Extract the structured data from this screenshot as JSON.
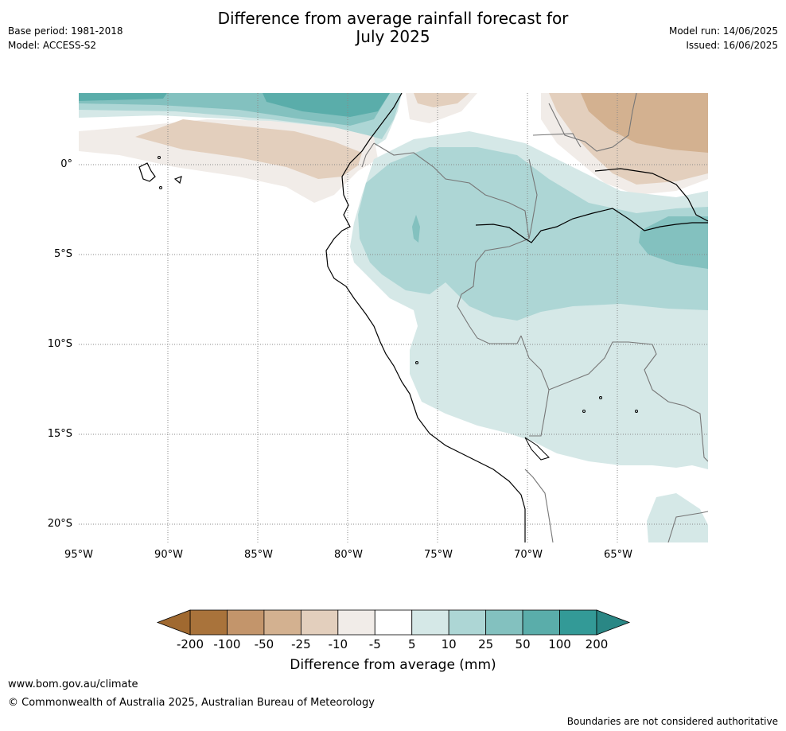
{
  "title_line1": "Difference from average rainfall forecast for",
  "title_line2": "July 2025",
  "meta_left": {
    "base_period": "Base period: 1981-2018",
    "model": "Model: ACCESS-S2"
  },
  "meta_right": {
    "model_run": "Model run: 14/06/2025",
    "issued": "Issued: 16/06/2025"
  },
  "map": {
    "lon_range": [
      -95,
      -60
    ],
    "lat_range": [
      -21,
      4
    ],
    "lat_ticks": [
      {
        "value": 0,
        "label": "0°"
      },
      {
        "value": -5,
        "label": "5°S"
      },
      {
        "value": -10,
        "label": "10°S"
      },
      {
        "value": -15,
        "label": "15°S"
      },
      {
        "value": -20,
        "label": "20°S"
      }
    ],
    "lon_ticks": [
      {
        "value": -95,
        "label": "95°W"
      },
      {
        "value": -90,
        "label": "90°W"
      },
      {
        "value": -85,
        "label": "85°W"
      },
      {
        "value": -80,
        "label": "80°W"
      },
      {
        "value": -75,
        "label": "75°W"
      },
      {
        "value": -70,
        "label": "70°W"
      },
      {
        "value": -65,
        "label": "65°W"
      }
    ]
  },
  "colorbar": {
    "title": "Difference from average (mm)",
    "tick_labels": [
      "-200",
      "-100",
      "-50",
      "-25",
      "-10",
      "-5",
      "5",
      "10",
      "25",
      "50",
      "100",
      "200"
    ],
    "bin_colors": [
      "#a9733b",
      "#c3956b",
      "#d3b190",
      "#e3cfbd",
      "#f1ece8",
      "#ffffff",
      "#d5e8e7",
      "#add6d5",
      "#83c1bf",
      "#5aadaa",
      "#339a97"
    ],
    "under_color": "#a06930",
    "over_color": "#2a8785"
  },
  "footer": {
    "url": "www.bom.gov.au/climate",
    "copyright": "© Commonwealth of Australia 2025, Australian Bureau of Meteorology",
    "disclaimer": "Boundaries are not considered authoritative"
  }
}
